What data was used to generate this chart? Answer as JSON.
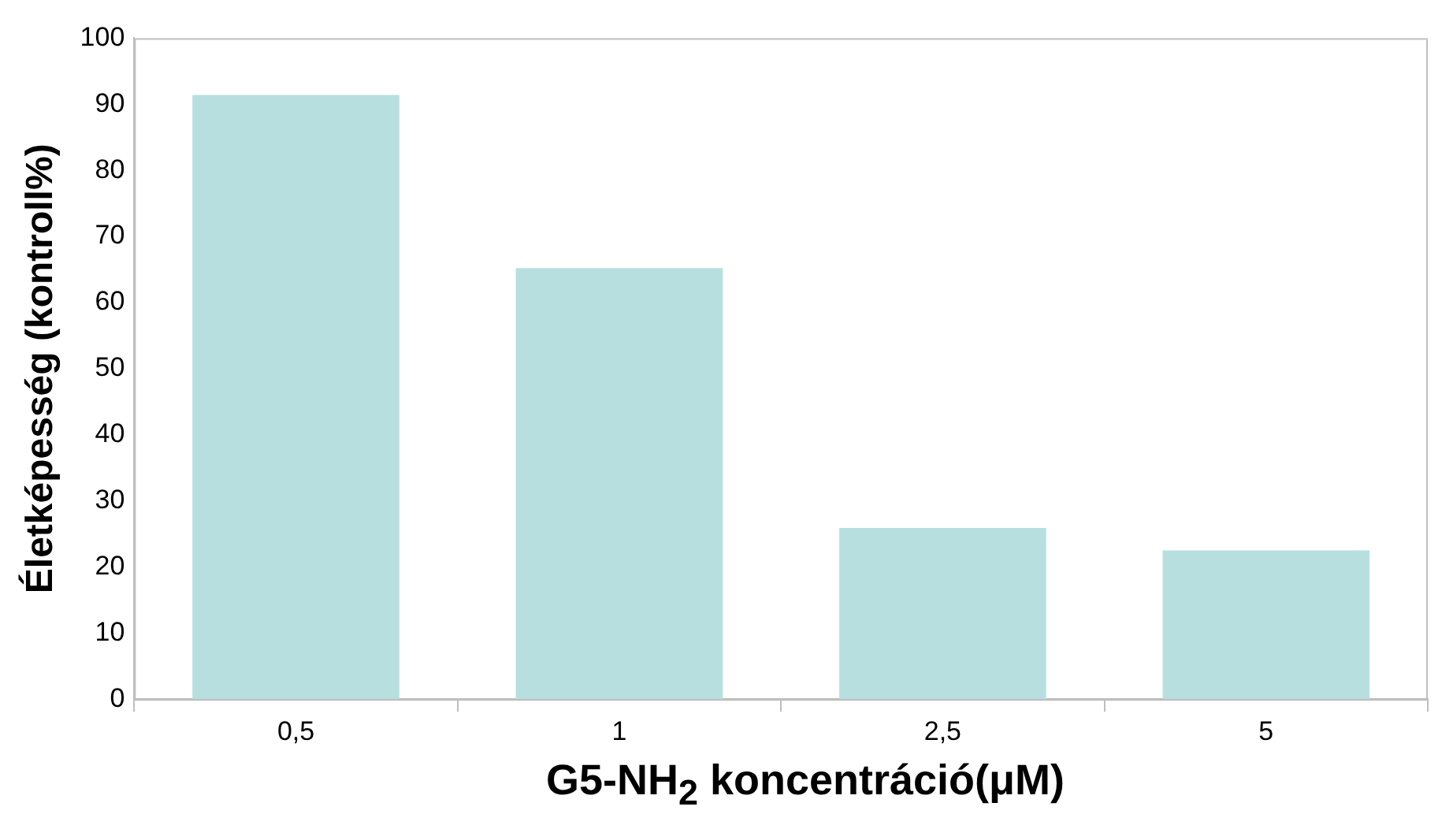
{
  "chart_data": {
    "type": "bar",
    "xlabel": "G5-NH$_{2}$ koncentráció(μM)",
    "ylabel": "Életképesség (kontroll%)",
    "categories": [
      "0,5",
      "1",
      "2,5",
      "5"
    ],
    "values": [
      91.4,
      65.2,
      25.9,
      22.5
    ],
    "color": "#b8dfe0",
    "ylim": [
      0,
      100
    ],
    "yticks": [
      0,
      10,
      20,
      30,
      40,
      50,
      60,
      70,
      80,
      90,
      100
    ],
    "grid": false,
    "legend": false
  }
}
